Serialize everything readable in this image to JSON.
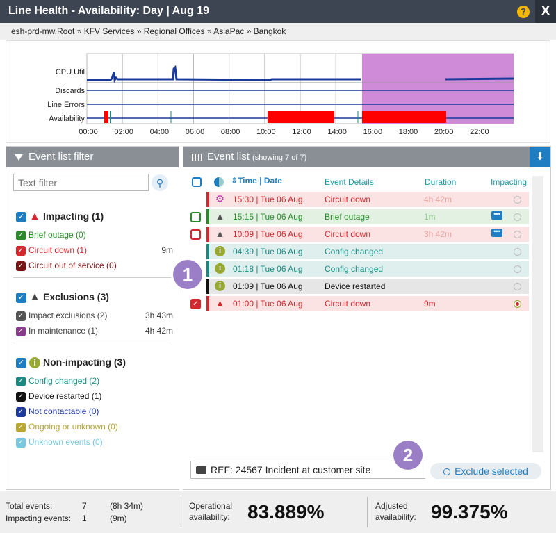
{
  "window": {
    "title": "Line Health - Availability: Day | Aug 19",
    "close_label": "X",
    "help_label": "?"
  },
  "breadcrumb": "esh-prd-mw.Root » KFV Services » Regional Offices » AsiaPac » Bangkok",
  "graph": {
    "rows": [
      "CPU Util",
      "Discards",
      "Line Errors",
      "Availability"
    ],
    "ticks": [
      "00:00",
      "02:00",
      "04:00",
      "06:00",
      "08:00",
      "10:00",
      "12:00",
      "14:00",
      "16:00",
      "18:00",
      "20:00",
      "22:00"
    ]
  },
  "filter": {
    "header": "Event list filter",
    "placeholder": "Text filter",
    "groups": [
      {
        "label": "Impacting (1)",
        "color": "#d2282e",
        "items": [
          {
            "label": "Brief outage (0)",
            "color": "#2a8a2a",
            "text_color": "#2a8a2a",
            "dur": ""
          },
          {
            "label": "Circuit down (1)",
            "color": "#d2282e",
            "text_color": "#d2282e",
            "dur": "9m"
          },
          {
            "label": "Circuit out of service (0)",
            "color": "#7a1515",
            "text_color": "#7a1515",
            "dur": ""
          }
        ]
      },
      {
        "label": "Exclusions (3)",
        "color": "#444",
        "items": [
          {
            "label": "Impact exclusions (2)",
            "color": "#555",
            "text_color": "#444",
            "dur": "3h 43m"
          },
          {
            "label": "In maintenance (1)",
            "color": "#8a3a8a",
            "text_color": "#444",
            "dur": "4h 42m"
          }
        ]
      },
      {
        "label": "Non-impacting (3)",
        "color": "#99aa33",
        "items": [
          {
            "label": "Config changed (2)",
            "color": "#1a8a80",
            "text_color": "#1a8a80",
            "dur": ""
          },
          {
            "label": "Device restarted (1)",
            "color": "#111",
            "text_color": "#111",
            "dur": ""
          },
          {
            "label": "Not contactable (0)",
            "color": "#1e3a9a",
            "text_color": "#1e3a9a",
            "dur": ""
          },
          {
            "label": "Ongoing or unknown (0)",
            "color": "#b8a830",
            "text_color": "#b8a830",
            "dur": ""
          },
          {
            "label": "Unknown events (0)",
            "color": "#7ac8e0",
            "text_color": "#7ac8e0",
            "dur": ""
          }
        ]
      }
    ]
  },
  "events": {
    "header": "Event list",
    "subheader": "(showing 7 of 7)",
    "columns": {
      "time": "Time | Date",
      "details": "Event Details",
      "duration": "Duration",
      "impacting": "Impacting"
    },
    "rows": [
      {
        "time": "15:30 | Tue 06 Aug",
        "details": "Circuit down",
        "duration": "4h 42m",
        "bar": "#d2282e",
        "bg": "#fbe3e3",
        "text": "#d2282e",
        "dur_color": "#e8a3a3",
        "icon": "gear-icon",
        "icon_color": "#b0339a",
        "icon_glyph": "⚙",
        "selbox": "",
        "chat": false
      },
      {
        "time": "15:15 | Tue 06 Aug",
        "details": "Brief outage",
        "duration": "1m",
        "bar": "#2a8a2a",
        "bg": "#e2f1e2",
        "text": "#2a8a2a",
        "dur_color": "#8fc88f",
        "icon": "warning-icon",
        "icon_color": "#555",
        "icon_glyph": "!",
        "selbox": "#2a8a2a",
        "chat": true
      },
      {
        "time": "10:09 | Tue 06 Aug",
        "details": "Circuit down",
        "duration": "3h 42m",
        "bar": "#d2282e",
        "bg": "#fbe3e3",
        "text": "#d2282e",
        "dur_color": "#e8a3a3",
        "icon": "warning-icon",
        "icon_color": "#555",
        "icon_glyph": "!",
        "selbox": "#d2282e",
        "chat": true
      },
      {
        "time": "04:39 | Tue 06 Aug",
        "details": "Config changed",
        "duration": "",
        "bar": "#1a8a80",
        "bg": "#dfefee",
        "text": "#1a8a80",
        "dur_color": "#1a8a80",
        "icon": "info-icon",
        "icon_color": "#99aa33",
        "icon_glyph": "i",
        "selbox": "",
        "chat": false
      },
      {
        "time": "01:18 | Tue 06 Aug",
        "details": "Config changed",
        "duration": "",
        "bar": "#1a8a80",
        "bg": "#dfefee",
        "text": "#1a8a80",
        "dur_color": "#1a8a80",
        "icon": "info-icon",
        "icon_color": "#99aa33",
        "icon_glyph": "i",
        "selbox": "",
        "chat": false
      },
      {
        "time": "01:09 | Tue 06 Aug",
        "details": "Device restarted",
        "duration": "",
        "bar": "#111",
        "bg": "#e6e6e6",
        "text": "#111",
        "dur_color": "#111",
        "icon": "info-icon",
        "icon_color": "#99aa33",
        "icon_glyph": "i",
        "selbox": "",
        "chat": false
      },
      {
        "time": "01:00 | Tue 06 Aug",
        "details": "Circuit down",
        "duration": "9m",
        "bar": "#d2282e",
        "bg": "#fbe3e3",
        "text": "#d2282e",
        "dur_color": "#d2282e",
        "icon": "warning-icon",
        "icon_color": "#d2282e",
        "icon_glyph": "!",
        "selbox": "#d2282e",
        "selchecked": true,
        "chat": false,
        "impacting_checked": true
      }
    ]
  },
  "ref_note": "REF: 24567 Incident at customer site",
  "exclude_button": "Exclude selected",
  "badges": [
    "1",
    "2"
  ],
  "footer": {
    "total_events_label": "Total events:",
    "total_events": "7",
    "total_duration": "(8h 34m)",
    "impacting_events_label": "Impacting events:",
    "impacting_events": "1",
    "impacting_duration": "(9m)",
    "operational_label_1": "Operational",
    "operational_label_2": "availability:",
    "operational_value": "83.889%",
    "adjusted_label_1": "Adjusted",
    "adjusted_label_2": "availability:",
    "adjusted_value": "99.375%"
  }
}
